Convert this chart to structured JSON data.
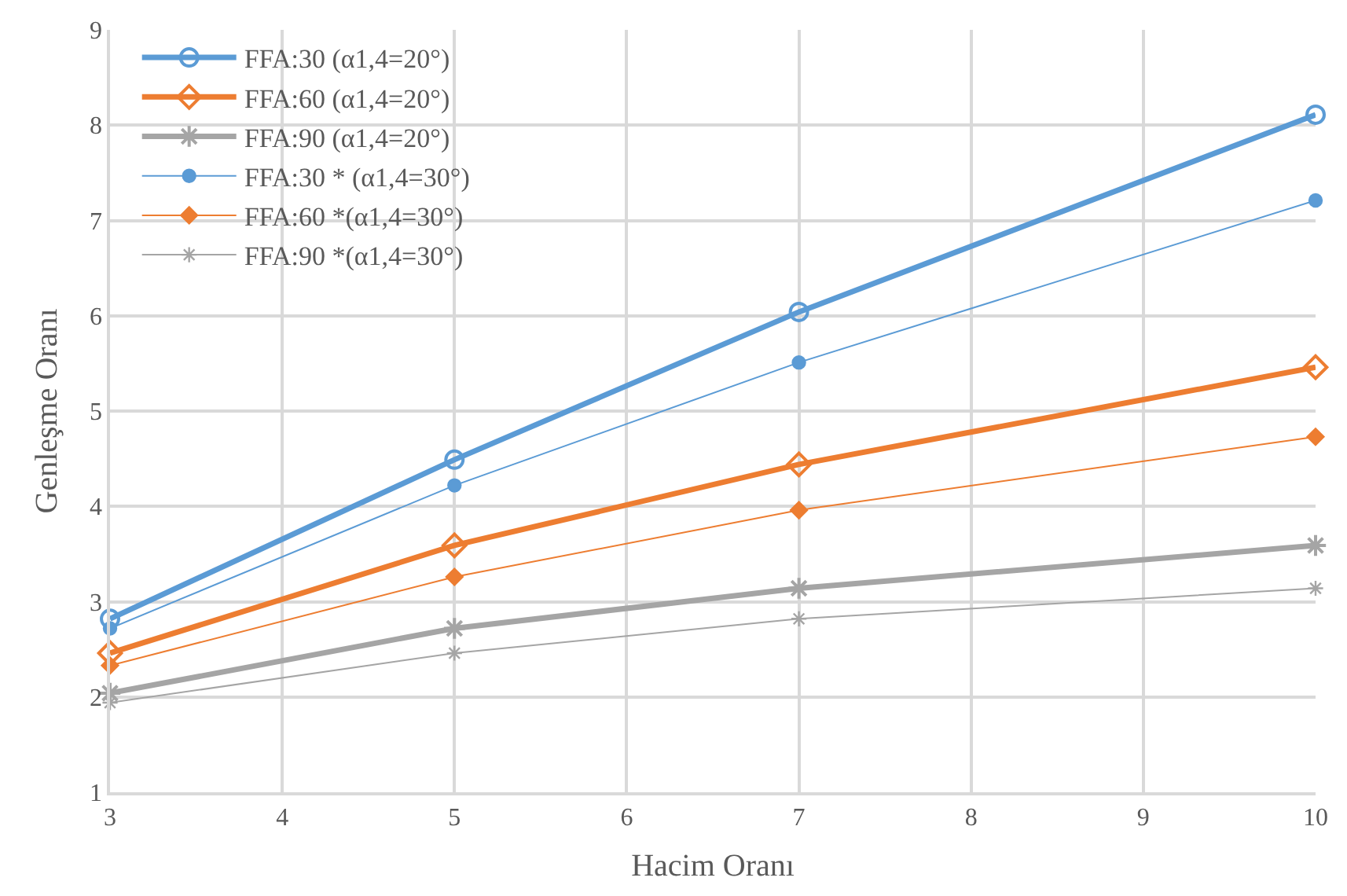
{
  "chart_data": {
    "type": "line",
    "xlabel": "Hacim Oranı",
    "ylabel": "Genleşme Oranı",
    "x": [
      3,
      5,
      7,
      10
    ],
    "series": [
      {
        "name": "FFA:30 (α1,4=20°)",
        "color": "#5b9bd5",
        "marker": "circle",
        "values": [
          2.82,
          4.49,
          6.04,
          8.11
        ]
      },
      {
        "name": "FFA:60 (α1,4=20°)",
        "color": "#ed7d31",
        "marker": "diamond",
        "values": [
          2.46,
          3.59,
          4.44,
          5.46
        ]
      },
      {
        "name": "FFA:90 (α1,4=20°)",
        "color": "#a5a5a5",
        "marker": "cross",
        "values": [
          2.04,
          2.72,
          3.14,
          3.59
        ]
      },
      {
        "name": "FFA:30 * (α1,4=30°)",
        "color": "#5b9bd5",
        "marker": "circle",
        "values": [
          2.72,
          4.22,
          5.51,
          7.21
        ]
      },
      {
        "name": "FFA:60 *(α1,4=30°)",
        "color": "#ed7d31",
        "marker": "diamond",
        "values": [
          2.33,
          3.26,
          3.96,
          4.73
        ]
      },
      {
        "name": "FFA:90 *(α1,4=30°)",
        "color": "#a5a5a5",
        "marker": "cross",
        "values": [
          1.94,
          2.46,
          2.82,
          3.14
        ]
      }
    ],
    "xlim": [
      3,
      10
    ],
    "xticks": [
      3,
      4,
      5,
      6,
      7,
      8,
      9,
      10
    ],
    "ylim": [
      1,
      9
    ],
    "yticks": [
      1,
      2,
      3,
      4,
      5,
      6,
      7,
      8,
      9
    ],
    "grid": true,
    "legend": "top left",
    "line_style": "solid"
  }
}
